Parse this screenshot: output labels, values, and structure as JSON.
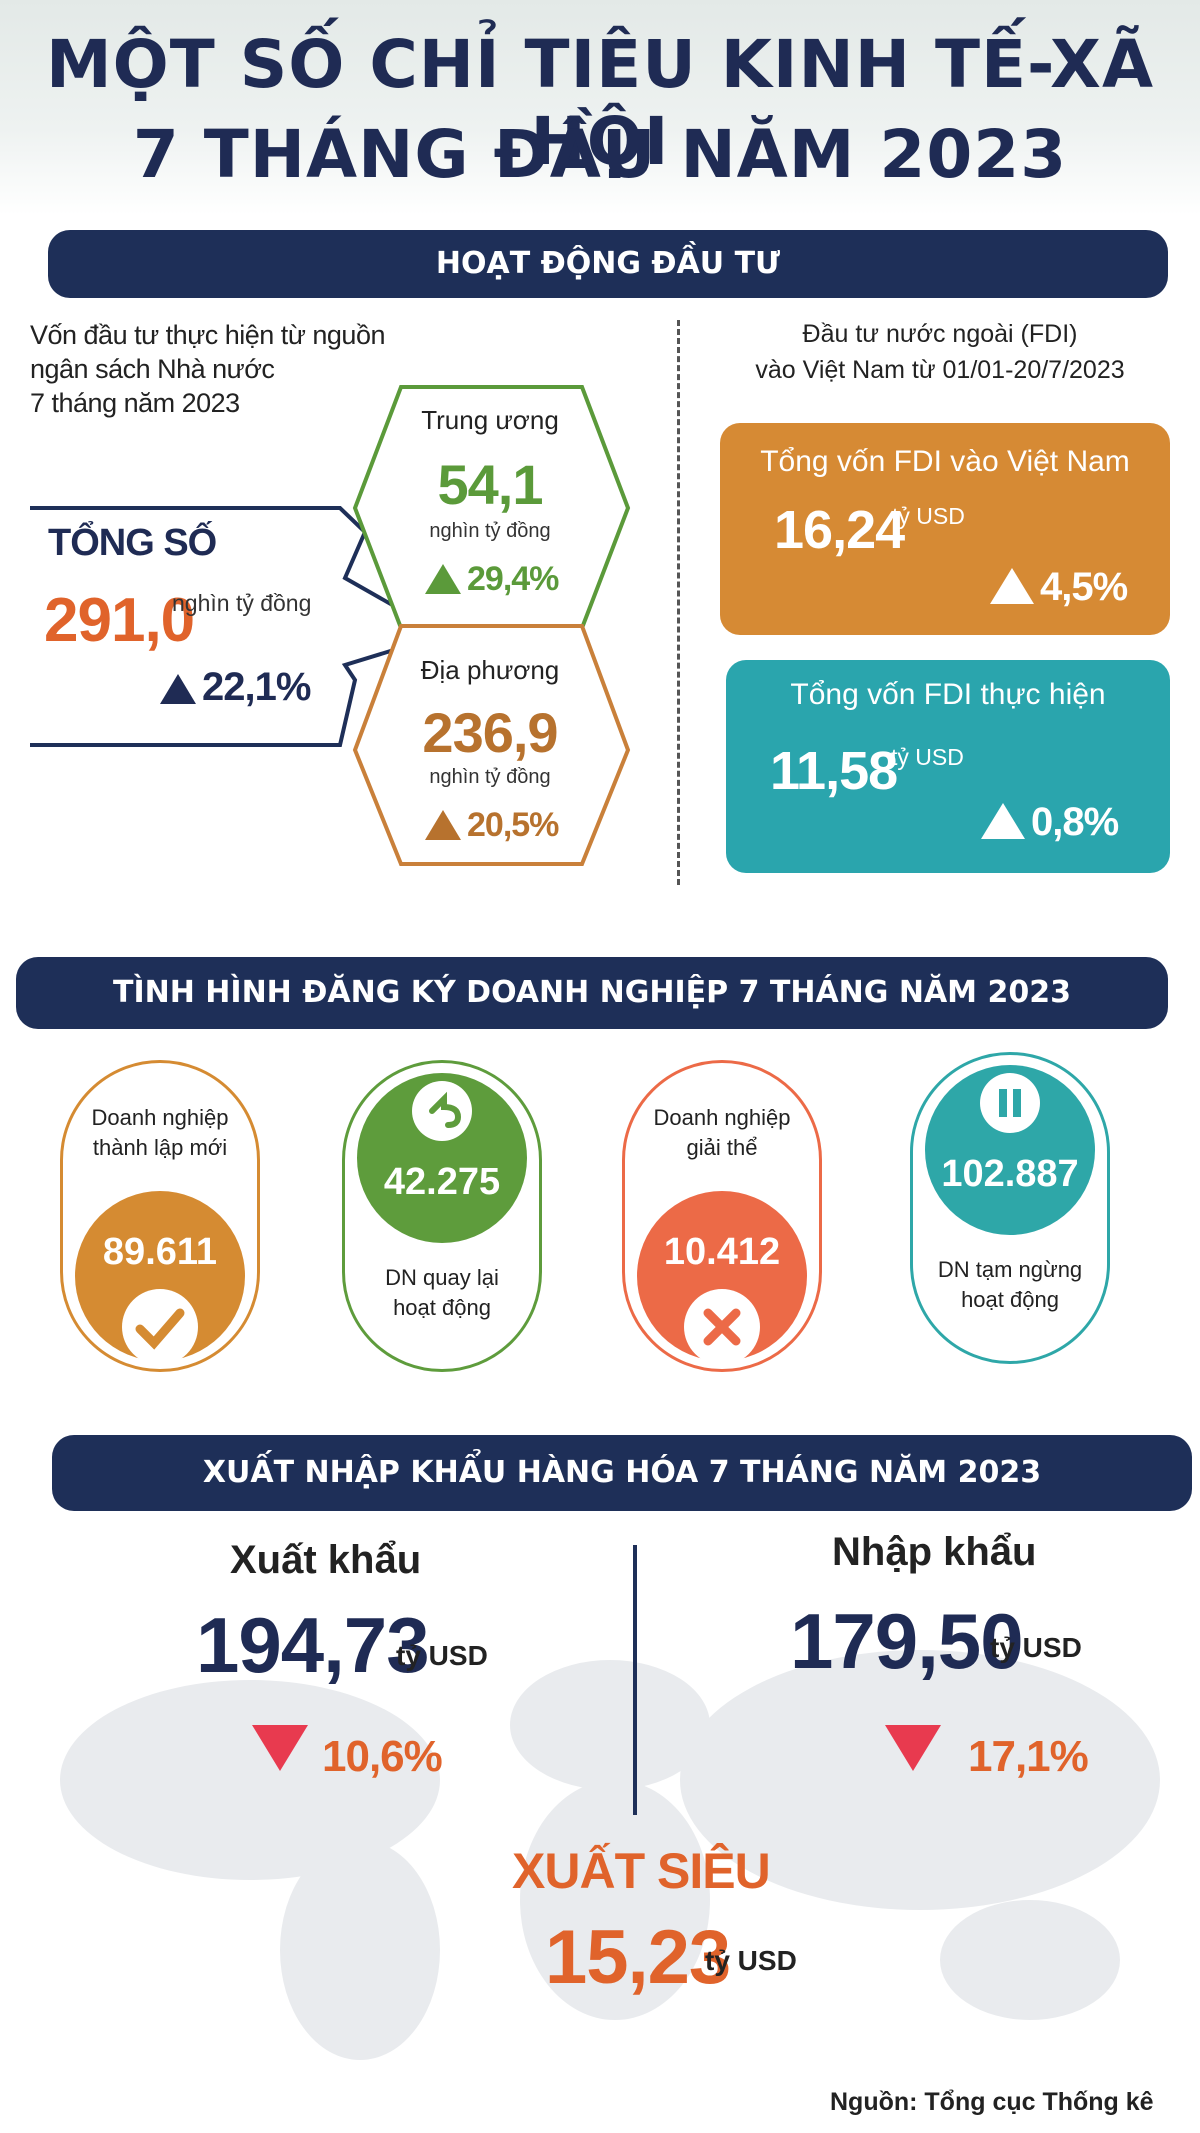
{
  "header": {
    "title_line1": "MỘT SỐ CHỈ TIÊU KINH TẾ-XÃ HỘI",
    "title_line2": "7 THÁNG ĐẦU NĂM 2023"
  },
  "investment": {
    "banner": "HOẠT ĐỘNG ĐẦU TƯ",
    "left_caption": [
      "Vốn đầu tư thực hiện từ nguồn",
      "ngân sách Nhà nước",
      "7 tháng năm 2023"
    ],
    "total_label": "TỔNG SỐ",
    "total_value": "291,0",
    "total_unit": "nghìn tỷ đồng",
    "total_change": "22,1%",
    "central": {
      "label": "Trung ương",
      "value": "54,1",
      "unit": "nghìn tỷ đồng",
      "change": "29,4%"
    },
    "local": {
      "label": "Địa phương",
      "value": "236,9",
      "unit": "nghìn tỷ đồng",
      "change": "20,5%"
    },
    "fdi_caption": [
      "Đầu tư nước ngoài (FDI)",
      "vào Việt Nam từ 01/01-20/7/2023"
    ],
    "fdi_total": {
      "label": "Tổng vốn FDI vào Việt Nam",
      "value": "16,24",
      "unit": "tỷ USD",
      "change": "4,5%"
    },
    "fdi_realized": {
      "label": "Tổng vốn FDI thực hiện",
      "value": "11,58",
      "unit": "tỷ USD",
      "change": "0,8%"
    }
  },
  "business": {
    "banner": "TÌNH HÌNH ĐĂNG KÝ DOANH NGHIỆP 7 THÁNG NĂM 2023",
    "cards": [
      {
        "label": [
          "Doanh nghiệp",
          "thành lập mới"
        ],
        "value": "89.611",
        "color": "#d58b32",
        "icon": "check-icon"
      },
      {
        "label": [
          "DN quay lại",
          "hoạt động"
        ],
        "value": "42.275",
        "color": "#5e9c3c",
        "icon": "return-icon"
      },
      {
        "label": [
          "Doanh nghiệp",
          "giải thể"
        ],
        "value": "10.412",
        "color": "#ec6a47",
        "icon": "close-icon"
      },
      {
        "label": [
          "DN tạm ngừng",
          "hoạt động"
        ],
        "value": "102.887",
        "color": "#2ea7a8",
        "icon": "pause-icon"
      }
    ]
  },
  "trade": {
    "banner": "XUẤT NHẬP KHẨU HÀNG HÓA 7 THÁNG NĂM 2023",
    "export": {
      "label": "Xuất khẩu",
      "value": "194,73",
      "unit": "tỷ USD",
      "change": "10,6%"
    },
    "import": {
      "label": "Nhập khẩu",
      "value": "179,50",
      "unit": "tỷ USD",
      "change": "17,1%"
    },
    "surplus": {
      "label": "XUẤT SIÊU",
      "value": "15,23",
      "unit": "tỷ USD"
    }
  },
  "source": "Nguồn: Tổng cục Thống kê",
  "colors": {
    "navy": "#1e2f58",
    "orange": "#e0632b",
    "green": "#5b9a3a",
    "fdi_orange": "#d68a34",
    "fdi_teal": "#2aa5ad",
    "down_red": "#e83a4f"
  }
}
